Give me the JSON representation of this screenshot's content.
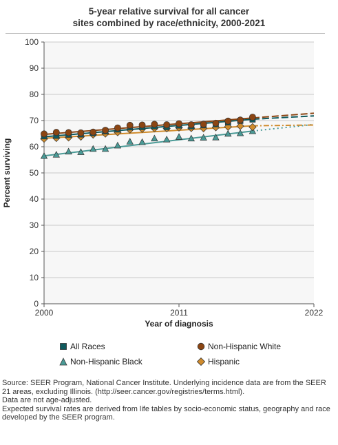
{
  "title_lines": [
    "5-year relative survival for all cancer",
    "sites combined by race/ethnicity, 2000-2021"
  ],
  "chart_data": {
    "type": "line",
    "xlabel": "Year of diagnosis",
    "ylabel": "Percent surviving",
    "xlim": [
      2000,
      2022
    ],
    "ylim": [
      0,
      100
    ],
    "x_ticks": [
      2000,
      2011,
      2022
    ],
    "y_ticks": [
      0,
      10,
      20,
      30,
      40,
      50,
      60,
      70,
      80,
      90,
      100
    ],
    "grid": "horizontal",
    "legend_position": "bottom",
    "series": [
      {
        "name": "All Races",
        "color": "#0f5a5e",
        "marker": "square",
        "observed_x": [
          2000,
          2001,
          2002,
          2003,
          2004,
          2005,
          2006,
          2007,
          2008,
          2009,
          2010,
          2011,
          2012,
          2013,
          2014,
          2015,
          2016,
          2017
        ],
        "observed_y": [
          64.0,
          64.2,
          64.6,
          64.7,
          65.2,
          65.9,
          66.6,
          67.4,
          67.5,
          67.8,
          67.5,
          68.1,
          67.8,
          68.2,
          68.6,
          69.3,
          69.9,
          70.4
        ],
        "fitted_x": [
          2000,
          2017
        ],
        "fitted_y": [
          63.8,
          70.5
        ],
        "projected_x": [
          2017,
          2022
        ],
        "projected_y": [
          70.5,
          71.8
        ]
      },
      {
        "name": "Non-Hispanic White",
        "color": "#8b4513",
        "marker": "circle",
        "observed_x": [
          2000,
          2001,
          2002,
          2003,
          2004,
          2005,
          2006,
          2007,
          2008,
          2009,
          2010,
          2011,
          2012,
          2013,
          2014,
          2015,
          2016,
          2017
        ],
        "observed_y": [
          64.9,
          65.5,
          65.4,
          65.3,
          65.6,
          66.3,
          67.2,
          68.2,
          68.3,
          68.6,
          68.4,
          68.8,
          68.4,
          68.6,
          69.0,
          69.8,
          70.2,
          71.3
        ],
        "fitted_x": [
          2000,
          2017
        ],
        "fitted_y": [
          64.7,
          71.0
        ],
        "projected_x": [
          2017,
          2022
        ],
        "projected_y": [
          71.0,
          72.8
        ]
      },
      {
        "name": "Non-Hispanic Black",
        "color": "#4a9a96",
        "marker": "triangle",
        "observed_x": [
          2000,
          2001,
          2002,
          2003,
          2004,
          2005,
          2006,
          2007,
          2008,
          2009,
          2010,
          2011,
          2012,
          2013,
          2014,
          2015,
          2016,
          2017
        ],
        "observed_y": [
          56.5,
          57.0,
          58.2,
          58.0,
          59.2,
          59.2,
          60.5,
          62.0,
          61.8,
          63.2,
          62.8,
          63.8,
          63.2,
          63.5,
          63.6,
          65.0,
          65.2,
          66.0
        ],
        "fitted_x": [
          2000,
          2017
        ],
        "fitted_y": [
          56.5,
          66.0
        ],
        "projected_x": [
          2017,
          2022
        ],
        "projected_y": [
          66.0,
          68.5
        ]
      },
      {
        "name": "Hispanic",
        "color": "#d08b2c",
        "marker": "diamond",
        "observed_x": [
          2000,
          2001,
          2002,
          2003,
          2004,
          2005,
          2006,
          2007,
          2008,
          2009,
          2010,
          2011,
          2012,
          2013,
          2014,
          2015,
          2016,
          2017
        ],
        "observed_y": [
          63.0,
          63.3,
          63.5,
          63.8,
          64.6,
          65.0,
          65.5,
          66.5,
          66.8,
          67.0,
          67.0,
          67.3,
          67.1,
          67.0,
          67.4,
          67.6,
          67.9,
          67.5
        ],
        "fitted_x": [
          2000,
          2017
        ],
        "fitted_y": [
          63.2,
          68.0
        ],
        "projected_x": [
          2017,
          2022
        ],
        "projected_y": [
          68.0,
          68.3
        ]
      }
    ]
  },
  "legend": [
    {
      "label": "All Races",
      "marker": "square",
      "color": "#0f5a5e"
    },
    {
      "label": "Non-Hispanic White",
      "marker": "circle",
      "color": "#8b4513"
    },
    {
      "label": "Non-Hispanic Black",
      "marker": "triangle",
      "color": "#4a9a96"
    },
    {
      "label": "Hispanic",
      "marker": "diamond",
      "color": "#d08b2c"
    }
  ],
  "source_lines": [
    "Source: SEER Program, National Cancer Institute. Underlying incidence data are from the SEER 21 areas, excluding Illinois. (http://seer.cancer.gov/registries/terms.html).",
    "Data are not age-adjusted.",
    "Expected survival rates are derived from life tables by socio-economic status, geography and race developed by the SEER program."
  ]
}
